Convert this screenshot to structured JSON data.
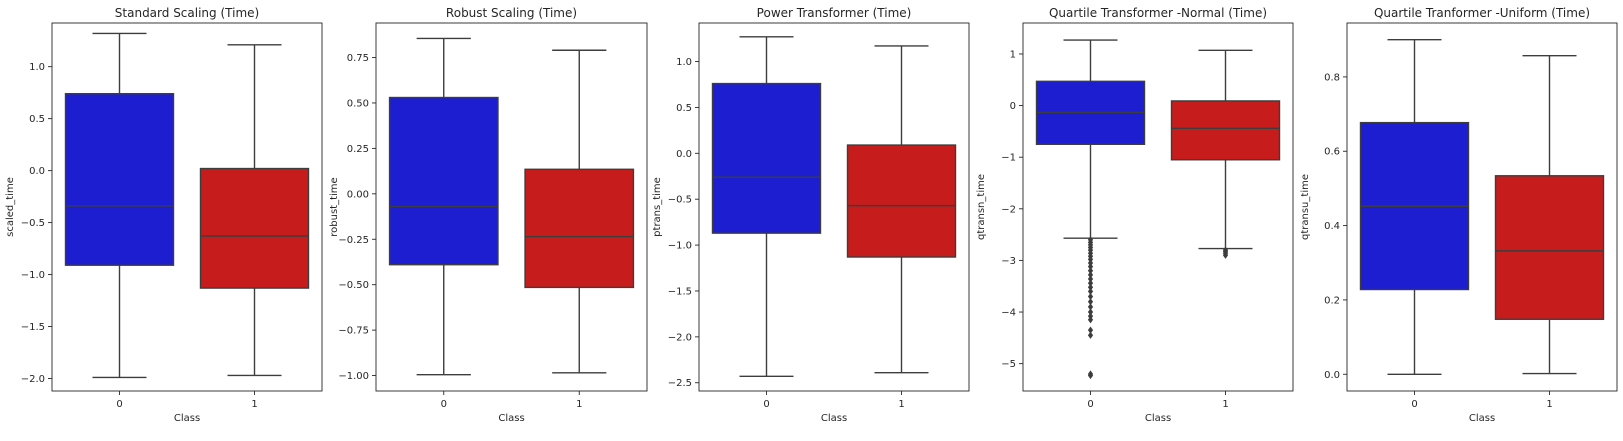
{
  "colors": {
    "class0": "#1d1ed0",
    "class1": "#c71c1c",
    "line": "#3d3d3d"
  },
  "chart_data": [
    {
      "type": "box",
      "title": "Standard Scaling (Time)",
      "xlabel": "Class",
      "ylabel": "scaled_time",
      "categories": [
        "0",
        "1"
      ],
      "ylim": [
        -2.12,
        1.42
      ],
      "yticks": [
        -2.0,
        -1.5,
        -1.0,
        -0.5,
        0.0,
        0.5,
        1.0
      ],
      "ytick_labels": [
        "−2.0",
        "−1.5",
        "−1.0",
        "−0.5",
        "0.0",
        "0.5",
        "1.0"
      ],
      "boxes": [
        {
          "whisker_low": -1.99,
          "q1": -0.91,
          "median": -0.34,
          "q3": 0.74,
          "whisker_high": 1.32,
          "outliers": []
        },
        {
          "whisker_low": -1.97,
          "q1": -1.13,
          "median": -0.63,
          "q3": 0.02,
          "whisker_high": 1.21,
          "outliers": []
        }
      ]
    },
    {
      "type": "box",
      "title": "Robust Scaling (Time)",
      "xlabel": "Class",
      "ylabel": "robust_time",
      "categories": [
        "0",
        "1"
      ],
      "ylim": [
        -1.085,
        0.94
      ],
      "yticks": [
        -1.0,
        -0.75,
        -0.5,
        -0.25,
        0.0,
        0.25,
        0.5,
        0.75
      ],
      "ytick_labels": [
        "−1.00",
        "−0.75",
        "−0.50",
        "−0.25",
        "0.00",
        "0.25",
        "0.50",
        "0.75"
      ],
      "boxes": [
        {
          "whisker_low": -0.995,
          "q1": -0.39,
          "median": -0.07,
          "q3": 0.53,
          "whisker_high": 0.855,
          "outliers": []
        },
        {
          "whisker_low": -0.985,
          "q1": -0.515,
          "median": -0.235,
          "q3": 0.135,
          "whisker_high": 0.79,
          "outliers": []
        }
      ]
    },
    {
      "type": "box",
      "title": "Power Transformer (Time)",
      "xlabel": "Class",
      "ylabel": "ptrans_time",
      "categories": [
        "0",
        "1"
      ],
      "ylim": [
        -2.59,
        1.42
      ],
      "yticks": [
        -2.5,
        -2.0,
        -1.5,
        -1.0,
        -0.5,
        0.0,
        0.5,
        1.0
      ],
      "ytick_labels": [
        "−2.5",
        "−2.0",
        "−1.5",
        "−1.0",
        "−0.5",
        "0.0",
        "0.5",
        "1.0"
      ],
      "boxes": [
        {
          "whisker_low": -2.43,
          "q1": -0.87,
          "median": -0.26,
          "q3": 0.76,
          "whisker_high": 1.27,
          "outliers": []
        },
        {
          "whisker_low": -2.39,
          "q1": -1.13,
          "median": -0.57,
          "q3": 0.09,
          "whisker_high": 1.17,
          "outliers": []
        }
      ]
    },
    {
      "type": "box",
      "title": "Quartile Transformer -Normal (Time)",
      "xlabel": "Class",
      "ylabel": "qtransn_time",
      "categories": [
        "0",
        "1"
      ],
      "ylim": [
        -5.53,
        1.6
      ],
      "yticks": [
        -5,
        -4,
        -3,
        -2,
        -1,
        0,
        1
      ],
      "ytick_labels": [
        "−5",
        "−4",
        "−3",
        "−2",
        "−1",
        "0",
        "1"
      ],
      "boxes": [
        {
          "whisker_low": -2.57,
          "q1": -0.75,
          "median": -0.13,
          "q3": 0.47,
          "whisker_high": 1.27,
          "outliers": [
            -2.6,
            -2.65,
            -2.7,
            -2.75,
            -2.8,
            -2.86,
            -2.92,
            -2.98,
            -3.05,
            -3.12,
            -3.2,
            -3.28,
            -3.36,
            -3.44,
            -3.52,
            -3.6,
            -3.7,
            -3.8,
            -3.9,
            -4.0,
            -4.08,
            -4.15,
            -4.35,
            -4.45,
            -5.2,
            -5.23
          ]
        },
        {
          "whisker_low": -2.77,
          "q1": -1.05,
          "median": -0.44,
          "q3": 0.09,
          "whisker_high": 1.07,
          "outliers": [
            -2.8,
            -2.83,
            -2.86,
            -2.9
          ]
        }
      ]
    },
    {
      "type": "box",
      "title": "Quartile Tranformer -Uniform (Time)",
      "xlabel": "Class",
      "ylabel": "qtransu_time",
      "categories": [
        "0",
        "1"
      ],
      "ylim": [
        -0.045,
        0.945
      ],
      "yticks": [
        0.0,
        0.2,
        0.4,
        0.6,
        0.8
      ],
      "ytick_labels": [
        "0.0",
        "0.2",
        "0.4",
        "0.6",
        "0.8"
      ],
      "boxes": [
        {
          "whisker_low": 0.0,
          "q1": 0.228,
          "median": 0.452,
          "q3": 0.677,
          "whisker_high": 0.9,
          "outliers": []
        },
        {
          "whisker_low": 0.002,
          "q1": 0.148,
          "median": 0.332,
          "q3": 0.534,
          "whisker_high": 0.857,
          "outliers": []
        }
      ]
    }
  ]
}
